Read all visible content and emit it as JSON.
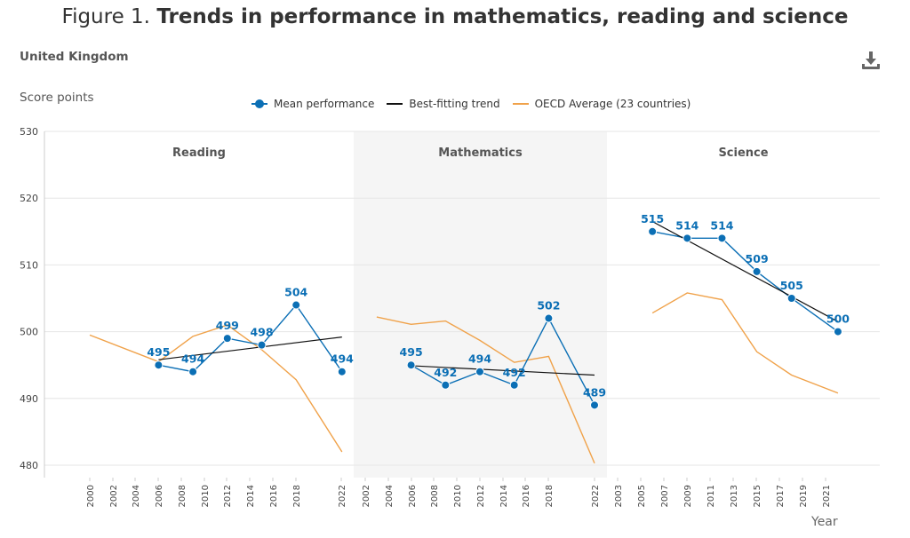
{
  "title": {
    "prefix": "Figure 1.",
    "main": "Trends in performance in mathematics, reading and science"
  },
  "country": "United Kingdom",
  "download_icon": "download-icon",
  "legend": {
    "mean": "Mean performance",
    "trend": "Best-fitting trend",
    "oecd": "OECD Average (23 countries)"
  },
  "colors": {
    "mean": "#0b6fb5",
    "trend": "#111111",
    "oecd": "#f0a24a",
    "shade": "#f5f5f5"
  },
  "chart_data": {
    "type": "line",
    "ylabel": "Score points",
    "xlabel": "Year",
    "ylim": [
      480,
      530
    ],
    "yticks": [
      480,
      490,
      500,
      510,
      520,
      530
    ],
    "grid": true,
    "legend_position": "top-center",
    "panels": [
      {
        "name": "Reading",
        "shaded": false,
        "x_ticks": [
          "2000",
          "2002",
          "2004",
          "2006",
          "2008",
          "2010",
          "2012",
          "2014",
          "2016",
          "2018",
          "2022"
        ],
        "mean": {
          "x": [
            2006,
            2009,
            2012,
            2015,
            2018,
            2022
          ],
          "y": [
            495,
            494,
            499,
            498,
            504,
            494
          ],
          "labels": [
            "495",
            "494",
            "499",
            "498",
            "504",
            "494"
          ]
        },
        "trend": {
          "x": [
            2006,
            2022
          ],
          "y": [
            495.8,
            499.2
          ]
        },
        "oecd": {
          "x": [
            2000,
            2006,
            2009,
            2012,
            2015,
            2018,
            2022
          ],
          "y": [
            499.5,
            495.5,
            499.3,
            501,
            497.3,
            492.8,
            482
          ]
        }
      },
      {
        "name": "Mathematics",
        "shaded": true,
        "x_ticks": [
          "2002",
          "2004",
          "2006",
          "2008",
          "2010",
          "2012",
          "2014",
          "2016",
          "2018",
          "2022"
        ],
        "mean": {
          "x": [
            2006,
            2009,
            2012,
            2015,
            2018,
            2022
          ],
          "y": [
            495,
            492,
            494,
            492,
            502,
            489
          ],
          "labels": [
            "495",
            "492",
            "494",
            "492",
            "502",
            "489"
          ]
        },
        "trend": {
          "x": [
            2006,
            2022
          ],
          "y": [
            494.9,
            493.5
          ]
        },
        "oecd": {
          "x": [
            2003,
            2006,
            2009,
            2012,
            2015,
            2018,
            2022
          ],
          "y": [
            502.2,
            501.1,
            501.6,
            498.7,
            495.4,
            496.3,
            480.3
          ]
        }
      },
      {
        "name": "Science",
        "shaded": false,
        "x_ticks": [
          "2003",
          "2005",
          "2007",
          "2009",
          "2011",
          "2013",
          "2015",
          "2017",
          "2019",
          "2021"
        ],
        "mean": {
          "x": [
            2006,
            2009,
            2012,
            2015,
            2018,
            2022
          ],
          "y": [
            515,
            514,
            514,
            509,
            505,
            500
          ],
          "labels": [
            "515",
            "514",
            "514",
            "509",
            "505",
            "500"
          ]
        },
        "trend": {
          "x": [
            2006,
            2022
          ],
          "y": [
            516.5,
            501.5
          ]
        },
        "oecd": {
          "x": [
            2006,
            2009,
            2012,
            2015,
            2018,
            2022
          ],
          "y": [
            502.8,
            505.8,
            504.8,
            497,
            493.5,
            490.8
          ]
        }
      }
    ]
  }
}
